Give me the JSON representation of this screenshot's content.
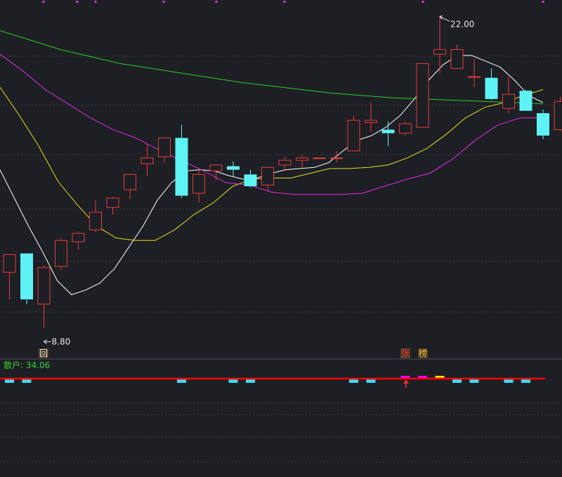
{
  "chart_data": {
    "type": "candlestick",
    "title": "",
    "ylim": [
      7.8,
      22.7
    ],
    "annotations": {
      "high_label": "22.00",
      "low_label": "8.80",
      "marker_hui": "回",
      "marker_zhang": "张",
      "marker_bang": "榜"
    },
    "candles": [
      {
        "o": 11.15,
        "h": 11.9,
        "l": 10.0,
        "c": 11.9
      },
      {
        "o": 11.95,
        "h": 11.95,
        "l": 9.8,
        "c": 10.0
      },
      {
        "o": 9.8,
        "h": 11.45,
        "l": 8.8,
        "c": 11.35
      },
      {
        "o": 11.4,
        "h": 12.6,
        "l": 11.25,
        "c": 12.5
      },
      {
        "o": 12.45,
        "h": 12.9,
        "l": 12.1,
        "c": 12.8
      },
      {
        "o": 12.95,
        "h": 14.2,
        "l": 12.85,
        "c": 13.7
      },
      {
        "o": 13.9,
        "h": 14.35,
        "l": 13.6,
        "c": 14.3
      },
      {
        "o": 14.65,
        "h": 15.25,
        "l": 14.25,
        "c": 15.3
      },
      {
        "o": 15.75,
        "h": 16.6,
        "l": 15.25,
        "c": 16.0
      },
      {
        "o": 16.05,
        "h": 16.85,
        "l": 15.8,
        "c": 16.85
      },
      {
        "o": 16.85,
        "h": 17.4,
        "l": 14.3,
        "c": 14.4
      },
      {
        "o": 14.5,
        "h": 15.5,
        "l": 14.1,
        "c": 15.3
      },
      {
        "o": 15.45,
        "h": 15.75,
        "l": 15.05,
        "c": 15.7
      },
      {
        "o": 15.65,
        "h": 15.85,
        "l": 15.2,
        "c": 15.5
      },
      {
        "o": 15.3,
        "h": 15.5,
        "l": 14.75,
        "c": 14.8
      },
      {
        "o": 14.85,
        "h": 15.6,
        "l": 14.6,
        "c": 15.6
      },
      {
        "o": 15.7,
        "h": 16.05,
        "l": 15.5,
        "c": 15.9
      },
      {
        "o": 15.9,
        "h": 16.15,
        "l": 15.6,
        "c": 16.0
      },
      {
        "o": 16.0,
        "h": 16.0,
        "l": 16.0,
        "c": 16.0
      },
      {
        "o": 16.0,
        "h": 16.3,
        "l": 15.8,
        "c": 16.0
      },
      {
        "o": 16.3,
        "h": 17.8,
        "l": 16.3,
        "c": 17.6
      },
      {
        "o": 17.5,
        "h": 18.35,
        "l": 17.1,
        "c": 17.6
      },
      {
        "o": 17.2,
        "h": 17.55,
        "l": 16.5,
        "c": 17.05
      },
      {
        "o": 17.05,
        "h": 17.55,
        "l": 16.95,
        "c": 17.45
      },
      {
        "o": 17.3,
        "h": 20.0,
        "l": 17.3,
        "c": 20.0
      },
      {
        "o": 20.4,
        "h": 22.0,
        "l": 19.6,
        "c": 20.6
      },
      {
        "o": 19.8,
        "h": 20.8,
        "l": 19.8,
        "c": 20.6
      },
      {
        "o": 19.45,
        "h": 20.2,
        "l": 19.0,
        "c": 19.45
      },
      {
        "o": 19.4,
        "h": 19.8,
        "l": 18.45,
        "c": 18.5
      },
      {
        "o": 18.1,
        "h": 19.45,
        "l": 17.9,
        "c": 18.7
      },
      {
        "o": 18.85,
        "h": 18.9,
        "l": 18.0,
        "c": 18.0
      },
      {
        "o": 17.9,
        "h": 18.05,
        "l": 16.8,
        "c": 16.95
      },
      {
        "o": 17.2,
        "h": 18.6,
        "l": 17.15,
        "c": 18.4
      }
    ],
    "series": [
      {
        "color": "#ffffff",
        "values": [
          15.5,
          14.3,
          13.1,
          12.0,
          10.8,
          10.2,
          10.4,
          10.7,
          11.3,
          12.2,
          13.1,
          14.2,
          14.95,
          15.45,
          15.5,
          15.45,
          15.25,
          15.1,
          15.15,
          15.35,
          15.5,
          15.55,
          15.6,
          15.8,
          16.3,
          16.75,
          16.95,
          17.3,
          17.8,
          18.5,
          19.3,
          19.95,
          20.35,
          20.35,
          20.1,
          19.85,
          19.3,
          18.65,
          18.35
        ]
      },
      {
        "color": "#e6e020",
        "values": [
          19.0,
          17.8,
          16.5,
          15.0,
          14.0,
          13.1,
          12.6,
          12.5,
          12.5,
          12.95,
          13.6,
          14.1,
          14.8,
          15.1,
          15.15,
          15.15,
          15.35,
          15.55,
          15.55,
          15.6,
          15.7,
          16.0,
          16.4,
          17.0,
          17.7,
          18.15,
          18.35,
          18.65,
          18.9
        ]
      },
      {
        "color": "#e62ae6",
        "values": [
          20.4,
          19.7,
          18.9,
          18.3,
          17.7,
          17.2,
          16.85,
          16.35,
          15.9,
          15.45,
          14.95,
          14.85,
          14.55,
          14.45,
          14.45,
          14.45,
          14.5,
          14.8,
          15.1,
          15.35,
          15.95,
          16.75,
          17.4,
          17.7,
          17.7
        ]
      },
      {
        "color": "#2bcf2b",
        "values": [
          21.4,
          21.0,
          20.6,
          20.3,
          20.0,
          19.8,
          19.6,
          19.4,
          19.2,
          19.05,
          18.9,
          18.75,
          18.65,
          18.55,
          18.5,
          18.45,
          18.4,
          18.35,
          18.3
        ]
      }
    ]
  },
  "indicator": {
    "label": "散户: 34.06",
    "bars": [
      {
        "i": 0,
        "color": "#3fd9f2"
      },
      {
        "i": 1,
        "color": "#3fd9f2"
      },
      {
        "i": 10,
        "color": "#3fd9f2"
      },
      {
        "i": 13,
        "color": "#3fd9f2"
      },
      {
        "i": 14,
        "color": "#3fd9f2"
      },
      {
        "i": 20,
        "color": "#3fd9f2"
      },
      {
        "i": 21,
        "color": "#3fd9f2"
      },
      {
        "i": 23,
        "color": "#ff00ff"
      },
      {
        "i": 24,
        "color": "#ff00ff"
      },
      {
        "i": 25,
        "color": "#ffd700"
      },
      {
        "i": 26,
        "color": "#3fd9f2"
      },
      {
        "i": 27,
        "color": "#3fd9f2"
      },
      {
        "i": 29,
        "color": "#3fd9f2"
      },
      {
        "i": 30,
        "color": "#3fd9f2"
      }
    ]
  },
  "colors": {
    "background": "#1d1f24",
    "up": "#e63b3b",
    "down": "#5ff3f6",
    "baseline": "#ff0000",
    "grid": "#3a3d46",
    "text": "#e8e8e8",
    "indicator_label": "#32d232"
  }
}
